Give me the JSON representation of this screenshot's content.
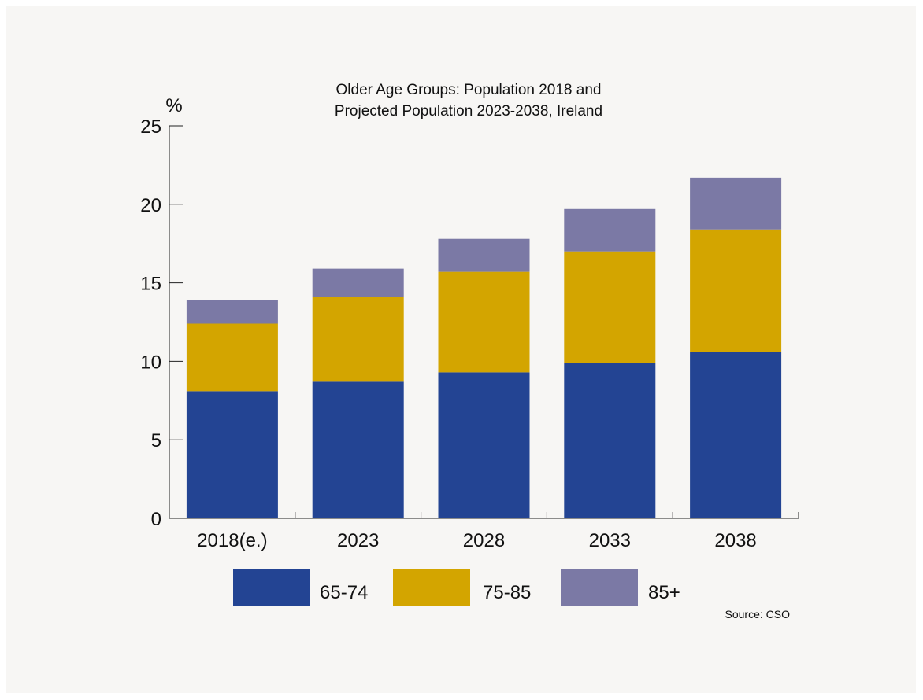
{
  "chart_data": {
    "type": "bar",
    "stacked": true,
    "title_lines": [
      "Older Age Groups: Population 2018 and",
      "Projected Population 2023-2038, Ireland"
    ],
    "ylabel": "%",
    "xlabel": "",
    "ylim": [
      0,
      25
    ],
    "yticks": [
      0,
      5,
      10,
      15,
      20,
      25
    ],
    "categories": [
      "2018(e.)",
      "2023",
      "2028",
      "2033",
      "2038"
    ],
    "series": [
      {
        "name": "65-74",
        "color": "#234493",
        "values": [
          8.1,
          8.7,
          9.3,
          9.9,
          10.6
        ]
      },
      {
        "name": "75-85",
        "color": "#d3a500",
        "values": [
          4.3,
          5.4,
          6.4,
          7.1,
          7.8
        ]
      },
      {
        "name": "85+",
        "color": "#7b79a5",
        "values": [
          1.5,
          1.8,
          2.1,
          2.7,
          3.3
        ]
      }
    ],
    "legend_position": "bottom",
    "grid": false,
    "source": "Source: CSO"
  }
}
